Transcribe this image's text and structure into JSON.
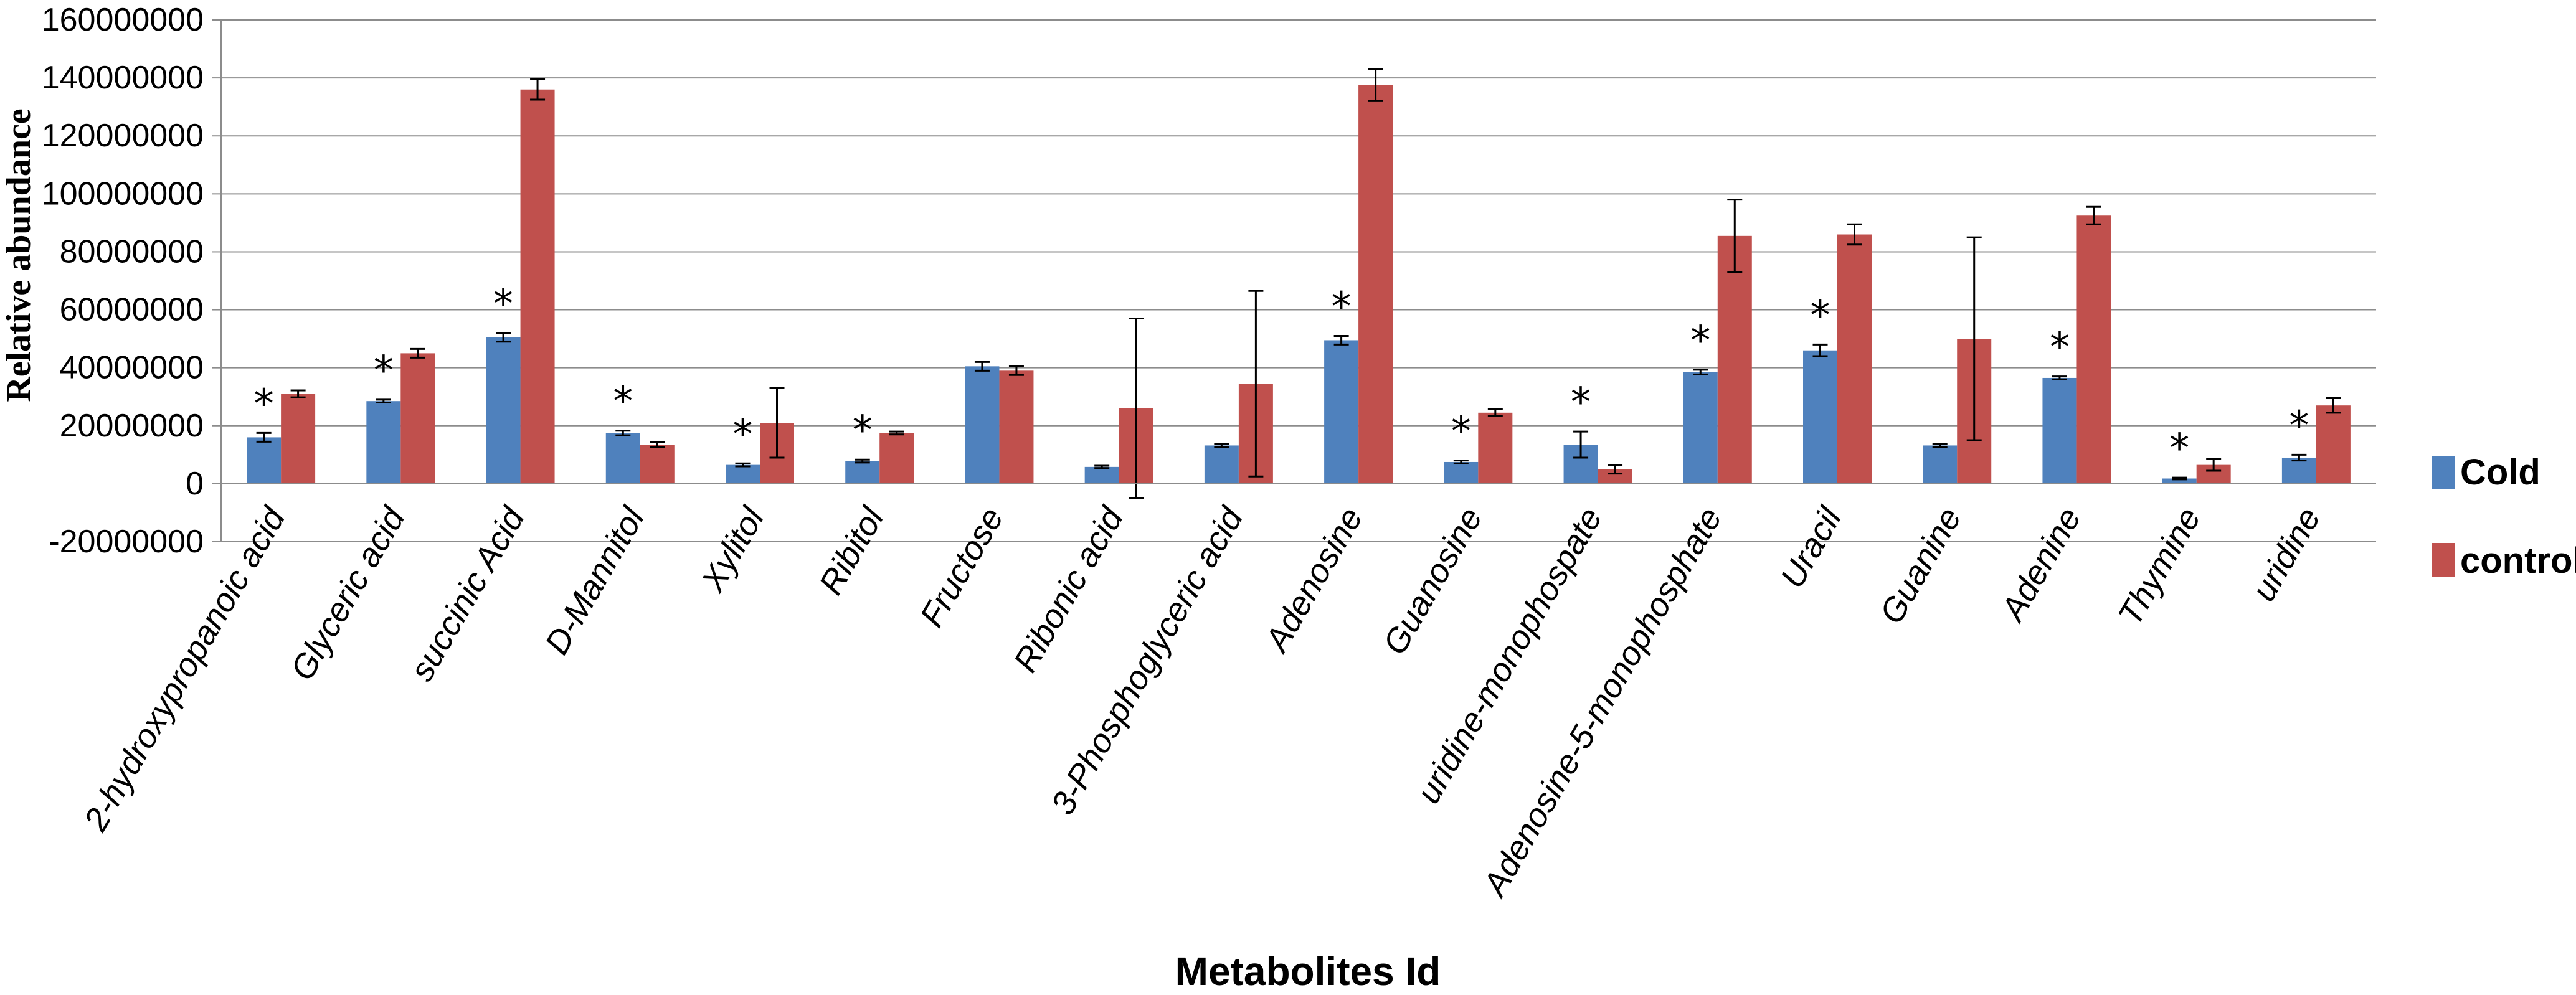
{
  "chart_data": {
    "type": "bar",
    "xlabel": "Metabolites Id",
    "ylabel": "Relative abundance",
    "ylim": [
      -20000000,
      160000000
    ],
    "yticks": [
      -20000000,
      0,
      20000000,
      40000000,
      60000000,
      80000000,
      100000000,
      120000000,
      140000000,
      160000000
    ],
    "ytick_labels": [
      "-20000000",
      "0",
      "20000000",
      "40000000",
      "60000000",
      "80000000",
      "100000000",
      "120000000",
      "140000000",
      "160000000"
    ],
    "grid": true,
    "legend_position": "right",
    "categories": [
      "2-hydroxypropanoic acid",
      "Glyceric acid",
      "succinic Acid",
      "D-Mannitol",
      "Xylitol",
      "Ribitol",
      "Fructose",
      "Ribonic acid",
      "3-Phosphoglyceric acid",
      "Adenosine",
      "Guanosine",
      "uridine-monophospate",
      "Adenosine-5-monophosphate",
      "Uracil",
      "Guanine",
      "Adenine",
      "Thymine",
      "uridine"
    ],
    "series": [
      {
        "name": "Cold",
        "color": "#4f81bd",
        "values": [
          16000000,
          28500000,
          50500000,
          17500000,
          6500000,
          7800000,
          40500000,
          5800000,
          13200000,
          49500000,
          7500000,
          13500000,
          38500000,
          46000000,
          13200000,
          36500000,
          1800000,
          9000000
        ],
        "errors": [
          1500000,
          500000,
          1500000,
          800000,
          500000,
          500000,
          1500000,
          400000,
          600000,
          1500000,
          500000,
          4500000,
          800000,
          2000000,
          600000,
          500000,
          300000,
          1000000
        ]
      },
      {
        "name": "control",
        "color": "#c0504d",
        "values": [
          31000000,
          45000000,
          136000000,
          13500000,
          21000000,
          17500000,
          39000000,
          26000000,
          34500000,
          137500000,
          24500000,
          5000000,
          85500000,
          86000000,
          50000000,
          92500000,
          6500000,
          27000000
        ],
        "errors": [
          1200000,
          1500000,
          3500000,
          800000,
          12000000,
          500000,
          1500000,
          31000000,
          32000000,
          5500000,
          1200000,
          1500000,
          12500000,
          3500000,
          35000000,
          3000000,
          2000000,
          2500000
        ]
      }
    ],
    "significance_marker": "*",
    "significant": [
      true,
      true,
      true,
      true,
      true,
      true,
      false,
      false,
      false,
      true,
      true,
      true,
      true,
      true,
      false,
      true,
      true,
      true
    ]
  }
}
